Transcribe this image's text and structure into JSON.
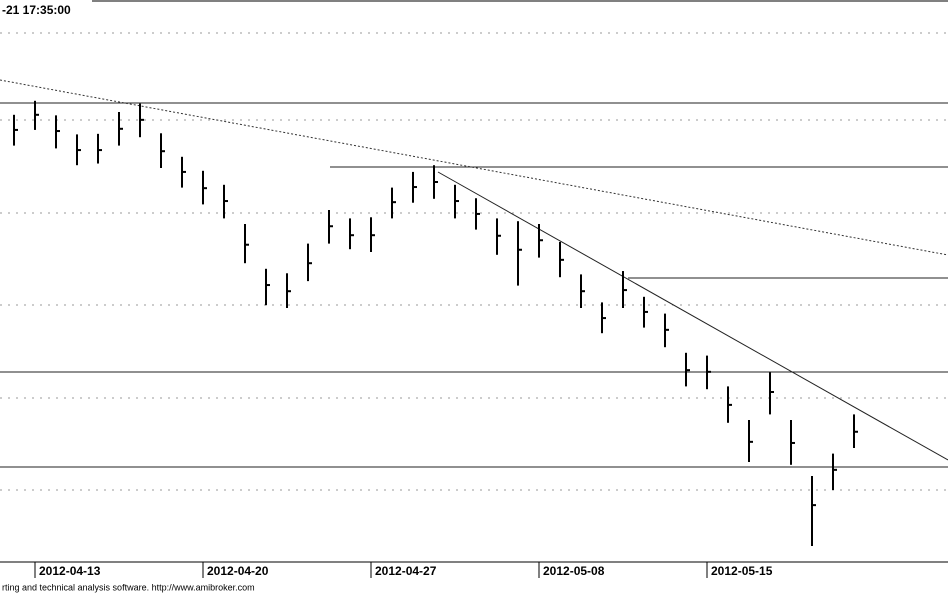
{
  "chart_data": {
    "type": "hlc",
    "title": "-21 17:35:00",
    "footer": "rting and technical analysis software. http://www.amibroker.com",
    "x": [
      null,
      "2012-04-13",
      null,
      null,
      null,
      null,
      null,
      null,
      null,
      "2012-04-20",
      null,
      null,
      null,
      null,
      null,
      null,
      null,
      "2012-04-27",
      null,
      null,
      null,
      null,
      null,
      null,
      null,
      "2012-05-08",
      null,
      null,
      null,
      null,
      null,
      null,
      null,
      "2012-05-15",
      null,
      null,
      null,
      null,
      null,
      null,
      null
    ],
    "high": [
      79.5,
      82.0,
      79.4,
      76.0,
      76.1,
      80.0,
      81.5,
      76.2,
      72.0,
      69.5,
      67.0,
      60.0,
      52.0,
      51.2,
      56.5,
      62.5,
      61.0,
      61.2,
      66.5,
      69.3,
      70.5,
      67.0,
      64.6,
      61.0,
      60.5,
      60.0,
      56.8,
      51.0,
      46.0,
      51.6,
      47.0,
      44.0,
      37.0,
      36.5,
      31.0,
      25.0,
      33.5,
      25.0,
      15.0,
      19.0,
      26.0
    ],
    "low": [
      74.0,
      76.8,
      73.5,
      70.5,
      70.8,
      74.0,
      75.5,
      70.0,
      66.5,
      63.5,
      61.0,
      53.0,
      45.5,
      45.0,
      49.8,
      56.5,
      55.5,
      55.0,
      61.0,
      63.8,
      64.5,
      61.0,
      59.0,
      54.5,
      49.0,
      54.0,
      50.5,
      45.0,
      40.5,
      45.0,
      41.5,
      38.0,
      31.0,
      30.5,
      24.5,
      17.5,
      26.0,
      17.0,
      2.5,
      12.5,
      20.0
    ],
    "close": [
      76.8,
      79.5,
      76.6,
      73.2,
      73.2,
      77.0,
      78.6,
      73.0,
      69.3,
      66.4,
      64.1,
      56.3,
      49.1,
      48.0,
      53.0,
      59.6,
      58.0,
      58.0,
      63.9,
      66.6,
      67.5,
      64.1,
      61.8,
      57.9,
      55.4,
      57.1,
      53.6,
      48.0,
      43.2,
      48.2,
      44.3,
      41.1,
      33.9,
      33.6,
      27.7,
      21.1,
      30.0,
      20.9,
      9.8,
      16.1,
      22.9
    ],
    "color": "#000000",
    "ylim": [
      0,
      100
    ]
  }
}
